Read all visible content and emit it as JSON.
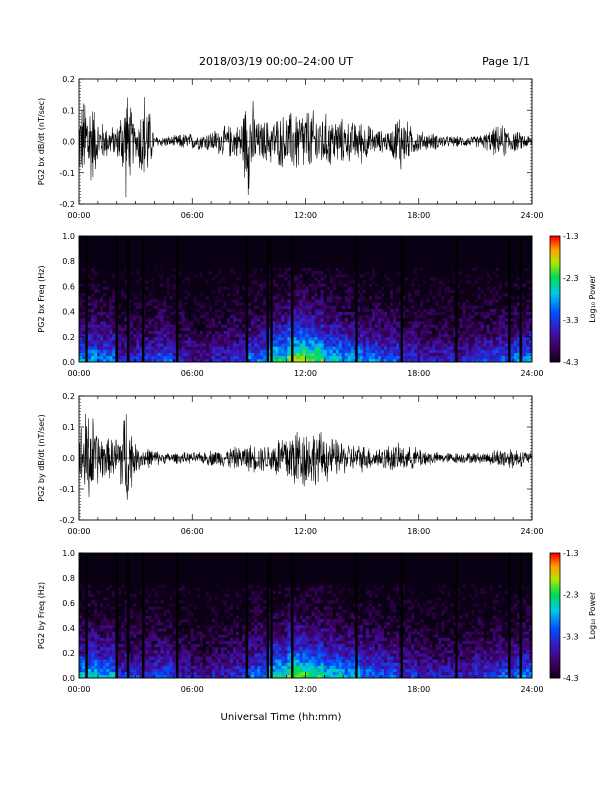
{
  "header": {
    "title": "2018/03/19   00:00–24:00 UT",
    "page": "Page 1/1"
  },
  "footer": {
    "xlabel": "Universal Time (hh:mm)"
  },
  "chart_data": [
    {
      "type": "line",
      "ylabel": "PG2 bx dB/dt (nT/sec)",
      "xlim": [
        0,
        24
      ],
      "ylim": [
        -0.2,
        0.2
      ],
      "xticks": [
        "00:00",
        "06:00",
        "12:00",
        "18:00",
        "24:00"
      ],
      "yticks": [
        "-0.2",
        "-0.1",
        "0.0",
        "0.1",
        "0.2"
      ],
      "series": [
        {
          "x": [
            0,
            0.5,
            1,
            1.5,
            2,
            2.5,
            3,
            3.5,
            4,
            4.5,
            5,
            5.5,
            6,
            6.5,
            7,
            7.5,
            8,
            8.5,
            9,
            9.5,
            10,
            10.5,
            11,
            11.5,
            12,
            12.5,
            13,
            13.5,
            14,
            14.5,
            15,
            15.5,
            16,
            16.5,
            17,
            17.5,
            18,
            18.5,
            19,
            19.5,
            20,
            20.5,
            21,
            21.5,
            22,
            22.5,
            23,
            23.5,
            24
          ],
          "y_envelope": [
            0.12,
            0.2,
            0.08,
            0.06,
            0.05,
            0.2,
            0.05,
            0.2,
            0.02,
            0.02,
            0.02,
            0.03,
            0.03,
            0.03,
            0.04,
            0.05,
            0.06,
            0.06,
            0.2,
            0.07,
            0.08,
            0.09,
            0.1,
            0.12,
            0.12,
            0.11,
            0.1,
            0.09,
            0.08,
            0.07,
            0.08,
            0.05,
            0.04,
            0.04,
            0.12,
            0.06,
            0.04,
            0.03,
            0.03,
            0.02,
            0.02,
            0.02,
            0.02,
            0.03,
            0.05,
            0.06,
            0.04,
            0.03,
            0.02
          ]
        }
      ]
    },
    {
      "type": "heatmap",
      "ylabel": "PG2 bx Freq (Hz)",
      "xlim": [
        0,
        24
      ],
      "ylim": [
        0,
        1
      ],
      "xticks": [
        "00:00",
        "06:00",
        "12:00",
        "18:00",
        "24:00"
      ],
      "yticks": [
        "0.0",
        "0.2",
        "0.4",
        "0.6",
        "0.8",
        "1.0"
      ],
      "colorbar": {
        "label": "Log₁₀ Power",
        "range": [
          -4.3,
          -1.3
        ],
        "ticks": [
          "-1.3",
          "-2.3",
          "-3.3",
          "-4.3"
        ]
      },
      "gaps_hours": [
        0.4,
        2.0,
        2.6,
        3.4,
        5.2,
        8.9,
        10.0,
        10.2,
        11.3,
        14.7,
        17.1,
        20.0,
        22.8,
        23.4
      ],
      "activity_profile": [
        0.5,
        0.45,
        0.3,
        0.35,
        0.4,
        0.3,
        0.25,
        0.3,
        0.35,
        0.45,
        0.6,
        0.75,
        0.7,
        0.55,
        0.5,
        0.45,
        0.4,
        0.35,
        0.3,
        0.3,
        0.3,
        0.35,
        0.4,
        0.45,
        0.3
      ]
    },
    {
      "type": "line",
      "ylabel": "PG2 by dB/dt (nT/sec)",
      "xlim": [
        0,
        24
      ],
      "ylim": [
        -0.2,
        0.2
      ],
      "xticks": [
        "00:00",
        "06:00",
        "12:00",
        "18:00",
        "24:00"
      ],
      "yticks": [
        "-0.2",
        "-0.1",
        "0.0",
        "0.1",
        "0.2"
      ],
      "series": [
        {
          "x": [
            0,
            0.5,
            1,
            1.5,
            2,
            2.5,
            3,
            3.5,
            4,
            4.5,
            5,
            5.5,
            6,
            6.5,
            7,
            7.5,
            8,
            8.5,
            9,
            9.5,
            10,
            10.5,
            11,
            11.5,
            12,
            12.5,
            13,
            13.5,
            14,
            14.5,
            15,
            15.5,
            16,
            16.5,
            17,
            17.5,
            18,
            18.5,
            19,
            19.5,
            20,
            20.5,
            21,
            21.5,
            22,
            22.5,
            23,
            23.5,
            24
          ],
          "y_envelope": [
            0.1,
            0.2,
            0.1,
            0.07,
            0.08,
            0.2,
            0.05,
            0.04,
            0.03,
            0.02,
            0.02,
            0.02,
            0.02,
            0.02,
            0.03,
            0.03,
            0.04,
            0.04,
            0.05,
            0.05,
            0.05,
            0.08,
            0.1,
            0.12,
            0.11,
            0.1,
            0.09,
            0.07,
            0.06,
            0.05,
            0.05,
            0.04,
            0.04,
            0.05,
            0.05,
            0.04,
            0.04,
            0.03,
            0.02,
            0.02,
            0.02,
            0.02,
            0.02,
            0.02,
            0.03,
            0.04,
            0.04,
            0.03,
            0.02
          ]
        }
      ]
    },
    {
      "type": "heatmap",
      "ylabel": "PG2 by Freq (Hz)",
      "xlim": [
        0,
        24
      ],
      "ylim": [
        0,
        1
      ],
      "xticks": [
        "00:00",
        "06:00",
        "12:00",
        "18:00",
        "24:00"
      ],
      "yticks": [
        "0.0",
        "0.2",
        "0.4",
        "0.6",
        "0.8",
        "1.0"
      ],
      "colorbar": {
        "label": "Log₁₀ Power",
        "range": [
          -4.3,
          -1.3
        ],
        "ticks": [
          "-1.3",
          "-2.3",
          "-3.3",
          "-4.3"
        ]
      },
      "gaps_hours": [
        0.4,
        2.0,
        2.6,
        3.4,
        5.2,
        8.9,
        10.0,
        10.2,
        11.3,
        14.7,
        17.1,
        20.0,
        22.8,
        23.4
      ],
      "activity_profile": [
        0.55,
        0.5,
        0.35,
        0.35,
        0.4,
        0.3,
        0.25,
        0.3,
        0.35,
        0.45,
        0.6,
        0.7,
        0.65,
        0.55,
        0.5,
        0.45,
        0.4,
        0.35,
        0.3,
        0.3,
        0.3,
        0.35,
        0.4,
        0.45,
        0.3
      ]
    }
  ]
}
